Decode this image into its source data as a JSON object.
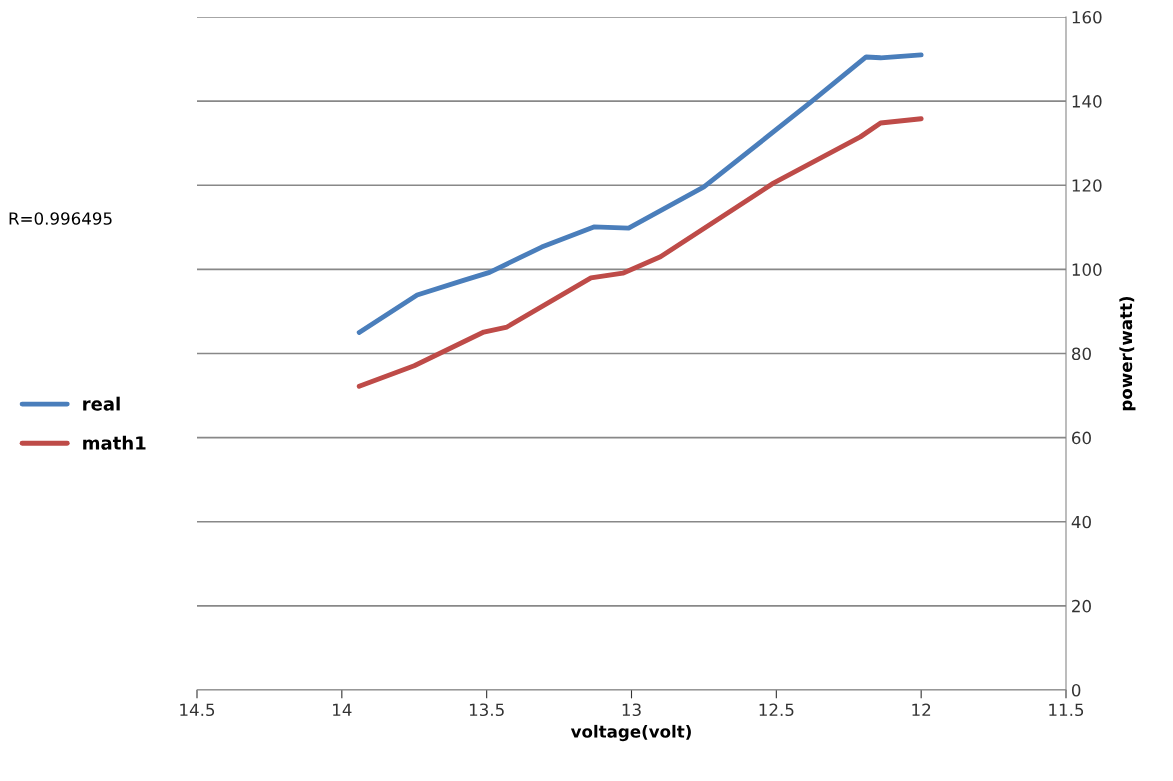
{
  "chart_data": {
    "type": "line",
    "xlabel": "voltage(volt)",
    "ylabel": "power(watt)",
    "annotations": [
      "R=0.996495"
    ],
    "xlim": [
      14.5,
      11.5
    ],
    "xticks": [
      14.5,
      14,
      13.5,
      13,
      12.5,
      12,
      11.5
    ],
    "ylim": [
      0,
      160
    ],
    "yticks": [
      0,
      20,
      40,
      60,
      80,
      100,
      120,
      140,
      160
    ],
    "grid": "y",
    "legend": "left",
    "marker": "none",
    "line_style": "solid",
    "series": [
      {
        "name": "real",
        "color": "#4a7ebb",
        "x": [
          13.94,
          13.74,
          13.58,
          13.49,
          13.31,
          13.13,
          13.01,
          12.75,
          12.38,
          12.19,
          12.14,
          12.0
        ],
        "values": [
          85,
          93.9,
          97.4,
          99.3,
          105.3,
          110.1,
          109.8,
          119.6,
          139.8,
          150.5,
          150.3,
          151
        ]
      },
      {
        "name": "math1",
        "color": "#be4b48",
        "x": [
          13.94,
          13.75,
          13.51,
          13.43,
          13.14,
          13.03,
          12.9,
          12.51,
          12.21,
          12.14,
          12.0
        ],
        "values": [
          72.2,
          77.1,
          85.1,
          86.3,
          98,
          99.1,
          103,
          120.5,
          131.5,
          134.8,
          135.8
        ]
      }
    ]
  }
}
